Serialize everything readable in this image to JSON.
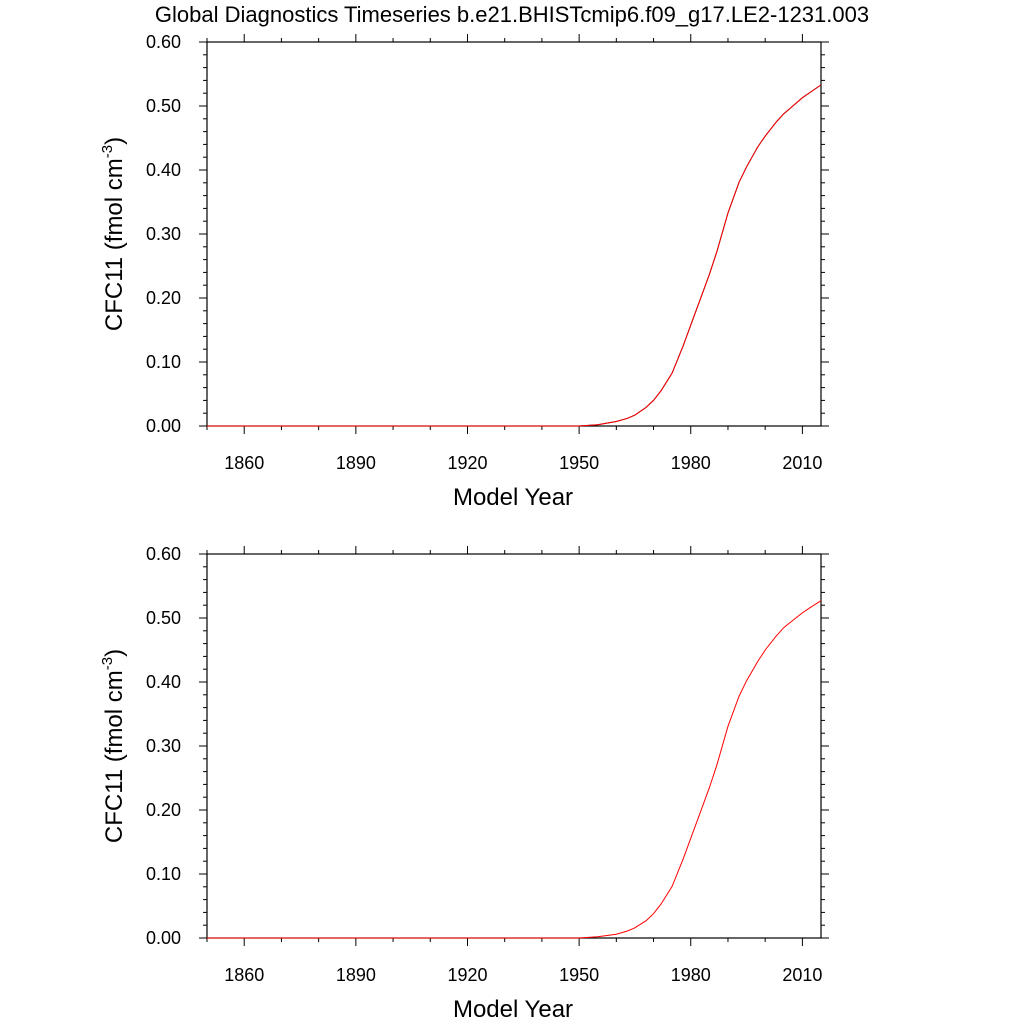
{
  "title": "Global Diagnostics Timeseries b.e21.BHISTcmip6.f09_g17.LE2-1231.003",
  "panels": [
    {
      "ylabel_main": "CFC11 (fmol cm",
      "ylabel_sup": "-3",
      "ylabel_close": ")",
      "xlabel": "Model Year",
      "line_colors": [
        "#000000",
        "#ff0000"
      ]
    },
    {
      "ylabel_main": "CFC11 (fmol cm",
      "ylabel_sup": "-3",
      "ylabel_close": ")",
      "xlabel": "Model Year",
      "line_colors": [
        "#ff0000"
      ]
    }
  ],
  "chart_data": [
    {
      "type": "line",
      "title": "Global Diagnostics Timeseries b.e21.BHISTcmip6.f09_g17.LE2-1231.003",
      "xlabel": "Model Year",
      "ylabel": "CFC11 (fmol cm-3)",
      "xlim": [
        1850,
        2015
      ],
      "ylim": [
        0.0,
        0.6
      ],
      "xticks": [
        "1860",
        "1890",
        "1920",
        "1950",
        "1980",
        "2010"
      ],
      "yticks": [
        "0.00",
        "0.10",
        "0.20",
        "0.30",
        "0.40",
        "0.50",
        "0.60"
      ],
      "grid": false,
      "x": [
        1850,
        1900,
        1950,
        1955,
        1960,
        1963,
        1965,
        1968,
        1970,
        1972,
        1975,
        1978,
        1980,
        1983,
        1985,
        1987,
        1990,
        1993,
        1995,
        1998,
        2000,
        2003,
        2005,
        2008,
        2010,
        2012,
        2015
      ],
      "series": [
        {
          "color": "#000000",
          "values": [
            0.0,
            0.0,
            0.0,
            0.002,
            0.007,
            0.012,
            0.017,
            0.029,
            0.04,
            0.055,
            0.083,
            0.126,
            0.158,
            0.205,
            0.237,
            0.272,
            0.333,
            0.381,
            0.405,
            0.436,
            0.453,
            0.475,
            0.488,
            0.503,
            0.513,
            0.521,
            0.533
          ]
        },
        {
          "color": "#ff0000",
          "values": [
            0.0,
            0.0,
            0.0,
            0.002,
            0.007,
            0.012,
            0.017,
            0.029,
            0.04,
            0.055,
            0.083,
            0.126,
            0.158,
            0.205,
            0.237,
            0.272,
            0.333,
            0.381,
            0.405,
            0.436,
            0.453,
            0.475,
            0.488,
            0.503,
            0.513,
            0.521,
            0.533
          ]
        }
      ]
    },
    {
      "type": "line",
      "xlabel": "Model Year",
      "ylabel": "CFC11 (fmol cm-3)",
      "xlim": [
        1850,
        2015
      ],
      "ylim": [
        0.0,
        0.6
      ],
      "xticks": [
        "1860",
        "1890",
        "1920",
        "1950",
        "1980",
        "2010"
      ],
      "yticks": [
        "0.00",
        "0.10",
        "0.20",
        "0.30",
        "0.40",
        "0.50",
        "0.60"
      ],
      "grid": false,
      "x": [
        1850,
        1900,
        1950,
        1955,
        1960,
        1963,
        1965,
        1968,
        1970,
        1972,
        1975,
        1978,
        1980,
        1983,
        1985,
        1987,
        1990,
        1993,
        1995,
        1998,
        2000,
        2003,
        2005,
        2008,
        2010,
        2012,
        2015
      ],
      "series": [
        {
          "color": "#ff0000",
          "values": [
            0.0,
            0.0,
            0.0,
            0.002,
            0.006,
            0.011,
            0.016,
            0.027,
            0.038,
            0.053,
            0.081,
            0.124,
            0.156,
            0.203,
            0.235,
            0.27,
            0.331,
            0.378,
            0.402,
            0.432,
            0.45,
            0.472,
            0.485,
            0.499,
            0.508,
            0.516,
            0.527
          ]
        }
      ]
    }
  ]
}
